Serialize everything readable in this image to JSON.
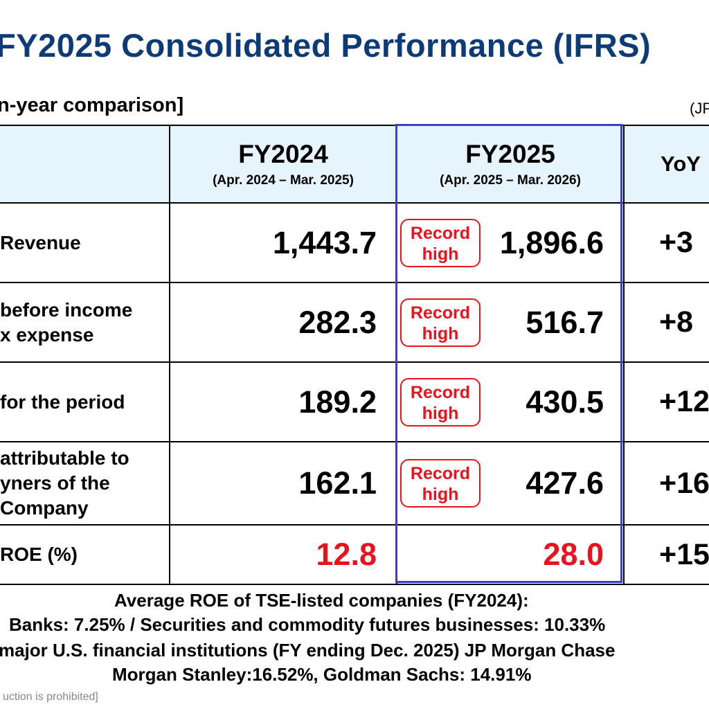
{
  "title": "FY2025 Consolidated Performance (IFRS)",
  "subheading": "n-year comparison]",
  "unit": "(JP",
  "table": {
    "columns": [
      {
        "main": "FY2024",
        "sub": "(Apr. 2024 – Mar. 2025)"
      },
      {
        "main": "FY2025",
        "sub": "(Apr. 2025 – Mar. 2026)"
      },
      {
        "main": "YoY"
      }
    ],
    "badge": {
      "line1": "Record",
      "line2": "high"
    },
    "rows": [
      {
        "label_lines": [
          "Revenue"
        ],
        "fy2024": "1,443.7",
        "fy2025": "1,896.6",
        "yoy": "+3"
      },
      {
        "label_lines": [
          "before income",
          "x expense"
        ],
        "fy2024": "282.3",
        "fy2025": "516.7",
        "yoy": "+8"
      },
      {
        "label_lines": [
          "for the period"
        ],
        "fy2024": "189.2",
        "fy2025": "430.5",
        "yoy": "+12"
      },
      {
        "label_lines": [
          "attributable to",
          "yners of the",
          "Company"
        ],
        "fy2024": "162.1",
        "fy2025": "427.6",
        "yoy": "+16"
      },
      {
        "label_lines": [
          "ROE (%)"
        ],
        "fy2024": "12.8",
        "fy2025": "28.0",
        "yoy": "+15"
      }
    ]
  },
  "notes": [
    "Average ROE of TSE-listed companies (FY2024):",
    "Banks: 7.25% / Securities and commodity futures businesses: 10.33%",
    "major U.S. financial institutions (FY ending Dec. 2025) JP Morgan Chase",
    "Morgan Stanley:16.52%, Goldman Sachs: 14.91%"
  ],
  "footer": "uction is prohibited]",
  "colors": {
    "title": "#0d3b78",
    "header_bg": "#e6f4fd",
    "highlight_border": "#3a3fce",
    "record_red": "#e8131c"
  }
}
